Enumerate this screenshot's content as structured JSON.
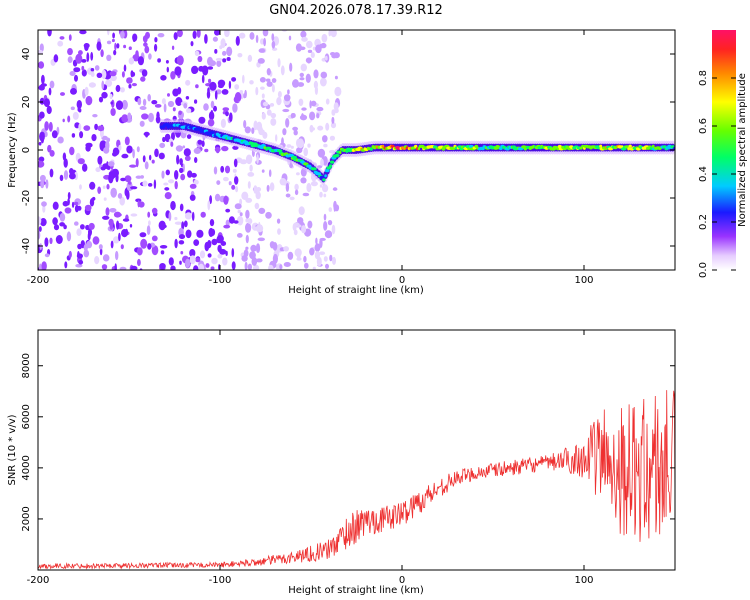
{
  "title": "GN04.2026.078.17.39.R12",
  "colors": {
    "snr_line": "#ee3030",
    "frame": "#000000",
    "background": "#ffffff"
  },
  "chart_data": [
    {
      "type": "heatmap",
      "name": "spectrogram",
      "xlabel": "Height of straight line (km)",
      "ylabel": "Frequency (Hz)",
      "xlim": [
        -200,
        150
      ],
      "ylim": [
        -50,
        50
      ],
      "xticks": [
        "-200",
        "-100",
        "0",
        "100"
      ],
      "xtick_values": [
        -200,
        -100,
        0,
        100
      ],
      "yticks": [
        "-40",
        "-20",
        "0",
        "20",
        "40"
      ],
      "ytick_values": [
        -40,
        -20,
        0,
        20,
        40
      ],
      "colorbar": {
        "label": "Normalized spectral amplitude",
        "range": [
          0,
          1
        ],
        "ticks": [
          "0.0",
          "0.2",
          "0.4",
          "0.6",
          "0.8"
        ],
        "tick_values": [
          0,
          0.2,
          0.4,
          0.6,
          0.8
        ]
      },
      "trace": {
        "x": [
          -132,
          -120,
          -110,
          -90,
          -80,
          -70,
          -60,
          -50,
          -43,
          -38,
          -33,
          -25,
          -15,
          0,
          20,
          40,
          60,
          80,
          100,
          120,
          140,
          150
        ],
        "freq": [
          10,
          10,
          8,
          4,
          2,
          0,
          -3,
          -7,
          -12,
          -4,
          0,
          0,
          1,
          1,
          1,
          1,
          1,
          1,
          1,
          1,
          1,
          1
        ],
        "amplitude": [
          0.3,
          0.35,
          0.3,
          0.45,
          0.5,
          0.55,
          0.55,
          0.5,
          0.45,
          0.5,
          0.6,
          0.7,
          0.75,
          0.85,
          0.7,
          0.6,
          0.55,
          0.65,
          0.7,
          0.7,
          0.6,
          0.4
        ]
      },
      "noise_region": [
        -200,
        -45
      ]
    },
    {
      "type": "line",
      "name": "snr",
      "xlabel": "Height of straight line (km)",
      "ylabel": "SNR (10 * v/v)",
      "xlim": [
        -200,
        150
      ],
      "ylim": [
        0,
        9400
      ],
      "xticks": [
        "-200",
        "-100",
        "0",
        "100"
      ],
      "xtick_values": [
        -200,
        -100,
        0,
        100
      ],
      "yticks": [
        "2000",
        "4000",
        "6000",
        "8000"
      ],
      "ytick_values": [
        2000,
        4000,
        6000,
        8000
      ],
      "envelope": {
        "x": [
          -200,
          -100,
          -80,
          -60,
          -40,
          -30,
          -20,
          -10,
          0,
          10,
          20,
          30,
          40,
          60,
          80,
          90,
          100,
          110,
          120,
          130,
          140,
          150
        ],
        "mean": [
          150,
          200,
          300,
          500,
          800,
          1500,
          1900,
          2000,
          2200,
          2700,
          3200,
          3600,
          3800,
          4000,
          4200,
          4300,
          4400,
          4500,
          4000,
          3800,
          4000,
          4100
        ],
        "spread": [
          100,
          100,
          150,
          250,
          400,
          700,
          600,
          500,
          500,
          500,
          400,
          300,
          300,
          300,
          300,
          500,
          800,
          2000,
          2600,
          2800,
          3200,
          3000
        ]
      }
    }
  ]
}
